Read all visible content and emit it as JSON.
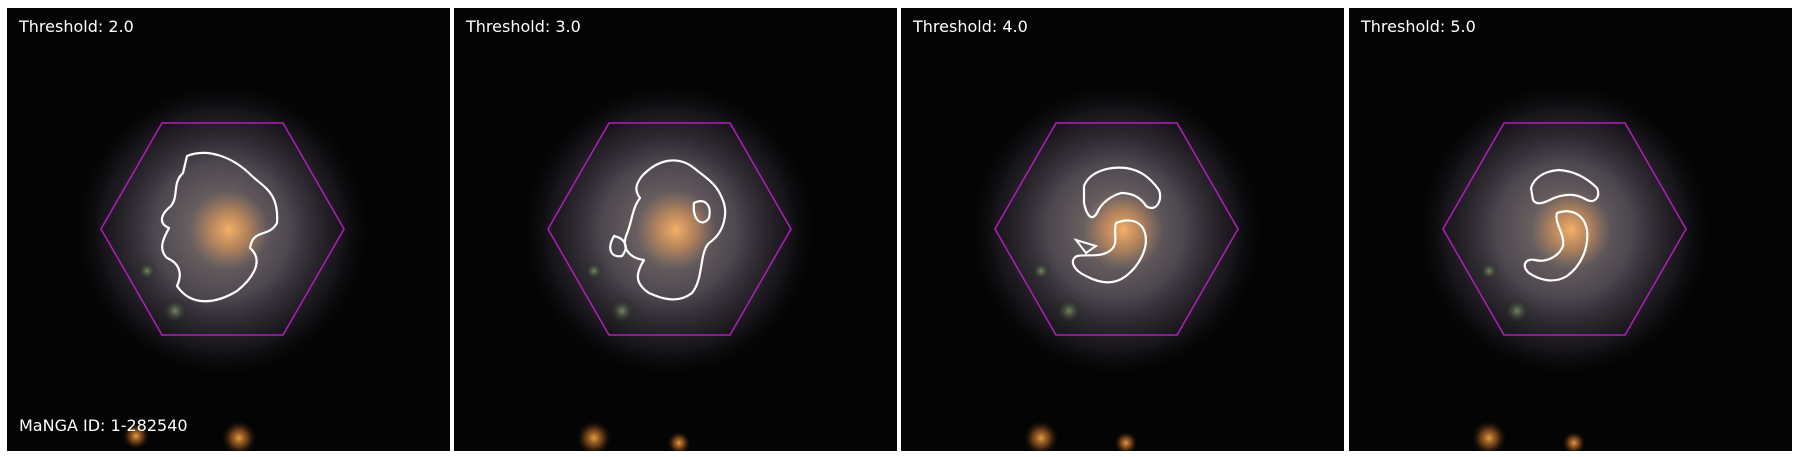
{
  "figure": {
    "manga_id_label": "MaNGA ID: 1-282540",
    "panels": [
      {
        "threshold_label": "Threshold: 2.0",
        "threshold": 2.0
      },
      {
        "threshold_label": "Threshold: 3.0",
        "threshold": 3.0
      },
      {
        "threshold_label": "Threshold: 4.0",
        "threshold": 4.0
      },
      {
        "threshold_label": "Threshold: 5.0",
        "threshold": 5.0
      }
    ]
  },
  "colors": {
    "background": "#040404",
    "hexagon_outline": "#b01fb8",
    "contour": "#ffffff",
    "galaxy_core": "#e9a45a",
    "galaxy_disk": "#8c7d72",
    "galaxy_halo": "#6e6580"
  }
}
